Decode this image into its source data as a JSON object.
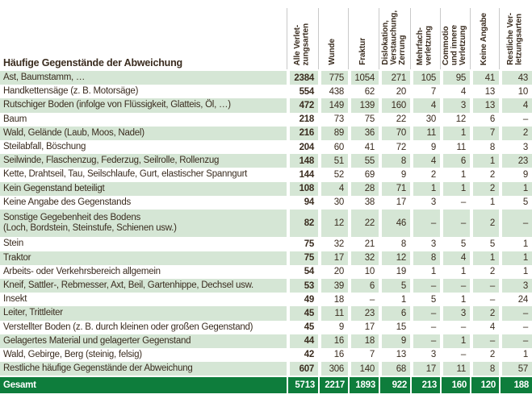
{
  "table": {
    "row_header": "Häufige Gegenstände der Abweichung",
    "columns": [
      "Alle Verlet-\nzungsarten",
      "Wunde",
      "Fraktur",
      "Dislokation,\nVerstauchung,\nZerrung",
      "Mehrfach-\nverletzung",
      "Commotio\nund innere\nVerletzung",
      "Keine Angabe",
      "Restliche Ver-\nletzungsarten"
    ],
    "rows": [
      {
        "label": "Ast, Baumstamm, …",
        "values": [
          "2384",
          "775",
          "1054",
          "271",
          "105",
          "95",
          "41",
          "43"
        ]
      },
      {
        "label": "Handkettensäge (z. B. Motorsäge)",
        "values": [
          "554",
          "438",
          "62",
          "20",
          "7",
          "4",
          "13",
          "10"
        ]
      },
      {
        "label": "Rutschiger Boden (infolge von Flüssigkeit, Glatteis, Öl, …)",
        "values": [
          "472",
          "149",
          "139",
          "160",
          "4",
          "3",
          "13",
          "4"
        ]
      },
      {
        "label": "Baum",
        "values": [
          "218",
          "73",
          "75",
          "22",
          "30",
          "12",
          "6",
          "–"
        ]
      },
      {
        "label": "Wald, Gelände (Laub, Moos, Nadel)",
        "values": [
          "216",
          "89",
          "36",
          "70",
          "11",
          "1",
          "7",
          "2"
        ]
      },
      {
        "label": "Steilabfall, Böschung",
        "values": [
          "204",
          "60",
          "41",
          "72",
          "9",
          "11",
          "8",
          "3"
        ]
      },
      {
        "label": "Seilwinde, Flaschenzug, Federzug, Seilrolle, Rollenzug",
        "values": [
          "148",
          "51",
          "55",
          "8",
          "4",
          "6",
          "1",
          "23"
        ]
      },
      {
        "label": "Kette, Drahtseil, Tau, Seilschlaufe, Gurt, elastischer Spanngurt",
        "values": [
          "144",
          "52",
          "69",
          "9",
          "2",
          "1",
          "2",
          "9"
        ]
      },
      {
        "label": "Kein Gegenstand beteiligt",
        "values": [
          "108",
          "4",
          "28",
          "71",
          "1",
          "1",
          "2",
          "1"
        ]
      },
      {
        "label": "Keine Angabe des Gegenstands",
        "values": [
          "94",
          "30",
          "38",
          "17",
          "3",
          "–",
          "1",
          "5"
        ]
      },
      {
        "label": "Sonstige Gegebenheit des Bodens\n(Loch, Bordstein, Steinstufe, Schienen usw.)",
        "values": [
          "82",
          "12",
          "22",
          "46",
          "–",
          "–",
          "2",
          "–"
        ],
        "tall": true
      },
      {
        "label": "Stein",
        "values": [
          "75",
          "32",
          "21",
          "8",
          "3",
          "5",
          "5",
          "1"
        ]
      },
      {
        "label": "Traktor",
        "values": [
          "75",
          "17",
          "32",
          "12",
          "8",
          "4",
          "1",
          "1"
        ]
      },
      {
        "label": "Arbeits- oder Verkehrsbereich allgemein",
        "values": [
          "54",
          "20",
          "10",
          "19",
          "1",
          "1",
          "2",
          "1"
        ]
      },
      {
        "label": "Kneif, Sattler-, Rebmesser, Axt, Beil, Gartenhippe, Dechsel usw.",
        "values": [
          "53",
          "39",
          "6",
          "5",
          "–",
          "–",
          "–",
          "3"
        ]
      },
      {
        "label": "Insekt",
        "values": [
          "49",
          "18",
          "–",
          "1",
          "5",
          "1",
          "–",
          "24"
        ]
      },
      {
        "label": "Leiter, Trittleiter",
        "values": [
          "45",
          "11",
          "23",
          "6",
          "–",
          "3",
          "2",
          "–"
        ]
      },
      {
        "label": "Verstellter Boden (z. B. durch kleinen oder großen Gegenstand)",
        "values": [
          "45",
          "9",
          "17",
          "15",
          "–",
          "–",
          "4",
          "–"
        ]
      },
      {
        "label": "Gelagertes Material und gelagerter Gegenstand",
        "values": [
          "44",
          "16",
          "18",
          "9",
          "–",
          "1",
          "–",
          "–"
        ]
      },
      {
        "label": "Wald, Gebirge, Berg (steinig, felsig)",
        "values": [
          "42",
          "16",
          "7",
          "13",
          "3",
          "–",
          "2",
          "1"
        ]
      },
      {
        "label": "Restliche häufige Gegenstände der Abweichung",
        "values": [
          "607",
          "306",
          "140",
          "68",
          "17",
          "11",
          "8",
          "57"
        ]
      }
    ],
    "total": {
      "label": "Gesamt",
      "values": [
        "5713",
        "2217",
        "1893",
        "922",
        "213",
        "160",
        "120",
        "188"
      ]
    },
    "colors": {
      "row_green": "#d5e6d5",
      "total_row_green": "#0e7d3c",
      "text_ink": "#3a2c1f",
      "header_divider_grey": "#c9c9c9"
    }
  }
}
